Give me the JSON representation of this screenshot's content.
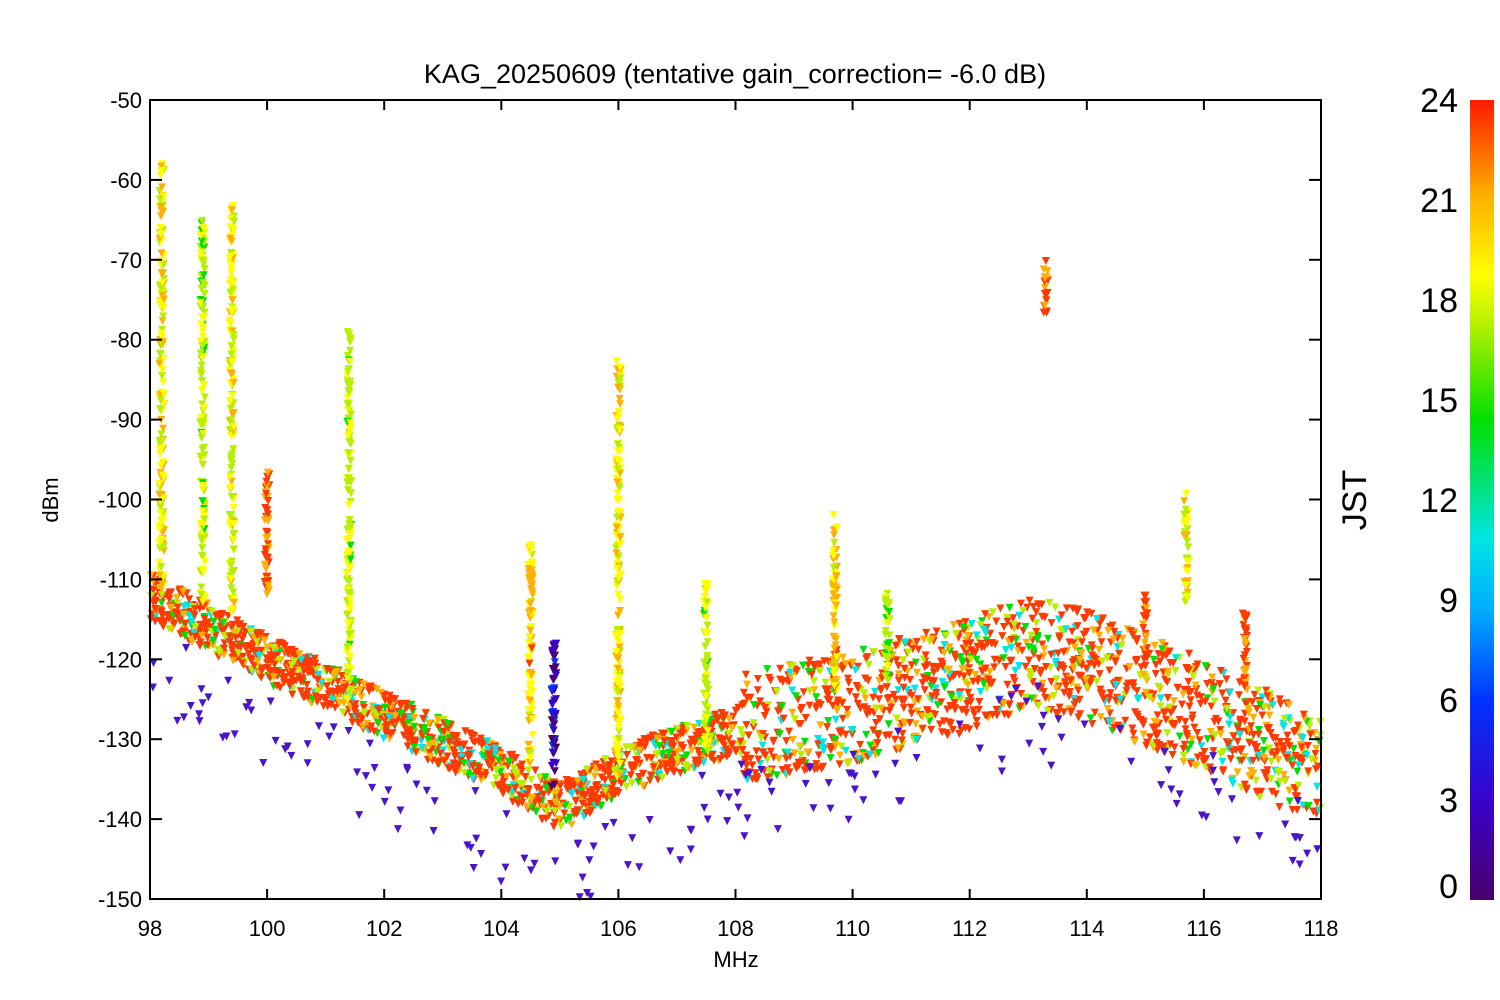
{
  "chart_data": {
    "type": "scatter",
    "title": "KAG_20250609 (tentative gain_correction= -6.0 dB)",
    "xlabel": "MHz",
    "ylabel": "dBm",
    "xlim": [
      98,
      118
    ],
    "ylim": [
      -150,
      -50
    ],
    "x_ticks": [
      98,
      100,
      102,
      104,
      106,
      108,
      110,
      112,
      114,
      116,
      118
    ],
    "y_ticks": [
      -50,
      -60,
      -70,
      -80,
      -90,
      -100,
      -110,
      -120,
      -130,
      -140,
      -150
    ],
    "grid": false,
    "color_variable": "JST",
    "colorbar": {
      "label": "JST",
      "range": [
        0,
        24
      ],
      "ticks": [
        24,
        21,
        18,
        15,
        12,
        9,
        6,
        3,
        0
      ],
      "colormap": "rainbow (purple → blue → cyan → green → yellow → orange → red)"
    },
    "noise_floor": {
      "x": [
        98,
        100,
        102,
        104,
        104.9,
        105.2,
        106,
        108,
        110,
        112,
        113,
        114,
        116,
        118
      ],
      "y": [
        -112,
        -120,
        -127,
        -134,
        -138,
        -138,
        -134,
        -129,
        -126,
        -122,
        -119,
        -121,
        -127,
        -134
      ]
    },
    "signal_peaks": [
      {
        "x": 98.2,
        "ymin": -112,
        "ymax": -58,
        "jst": 19
      },
      {
        "x": 98.9,
        "ymin": -113,
        "ymax": -65,
        "jst": 17
      },
      {
        "x": 99.4,
        "ymin": -114,
        "ymax": -63,
        "jst": 18
      },
      {
        "x": 100.0,
        "ymin": -112,
        "ymax": -96,
        "jst": 23
      },
      {
        "x": 101.4,
        "ymin": -126,
        "ymax": -79,
        "jst": 17
      },
      {
        "x": 104.5,
        "ymin": -133,
        "ymax": -105,
        "jst": 20
      },
      {
        "x": 104.9,
        "ymin": -136,
        "ymax": -118,
        "jst": 2
      },
      {
        "x": 106.0,
        "ymin": -135,
        "ymax": -82,
        "jst": 19
      },
      {
        "x": 107.5,
        "ymin": -132,
        "ymax": -110,
        "jst": 17
      },
      {
        "x": 109.7,
        "ymin": -124,
        "ymax": -101,
        "jst": 20
      },
      {
        "x": 110.6,
        "ymin": -123,
        "ymax": -111,
        "jst": 16
      },
      {
        "x": 113.3,
        "ymin": -77,
        "ymax": -70,
        "jst": 23
      },
      {
        "x": 115.0,
        "ymin": -120,
        "ymax": -112,
        "jst": 23
      },
      {
        "x": 115.7,
        "ymin": -113,
        "ymax": -99,
        "jst": 19
      },
      {
        "x": 116.7,
        "ymin": -125,
        "ymax": -114,
        "jst": 23
      }
    ]
  },
  "colors": {
    "cmap": [
      "#4a006a",
      "#3b00c9",
      "#0033ff",
      "#00aaff",
      "#00e5e5",
      "#00e000",
      "#b6f000",
      "#ffff00",
      "#ffb000",
      "#ff3a00"
    ],
    "dominant": "#ff3a00",
    "night": "#4a14c8"
  }
}
